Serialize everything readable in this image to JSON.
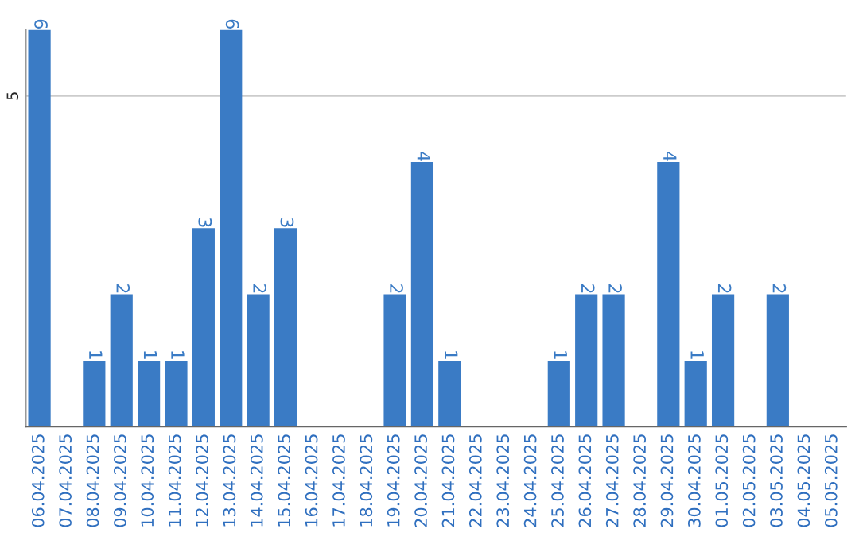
{
  "chart_data": {
    "type": "bar",
    "categories": [
      "06.04.2025",
      "07.04.2025",
      "08.04.2025",
      "09.04.2025",
      "10.04.2025",
      "11.04.2025",
      "12.04.2025",
      "13.04.2025",
      "14.04.2025",
      "15.04.2025",
      "16.04.2025",
      "17.04.2025",
      "18.04.2025",
      "19.04.2025",
      "20.04.2025",
      "21.04.2025",
      "22.04.2025",
      "23.04.2025",
      "24.04.2025",
      "25.04.2025",
      "26.04.2025",
      "27.04.2025",
      "28.04.2025",
      "29.04.2025",
      "30.04.2025",
      "01.05.2025",
      "02.05.2025",
      "03.05.2025",
      "04.05.2025",
      "05.05.2025"
    ],
    "values": [
      6,
      0,
      1,
      2,
      1,
      1,
      3,
      6,
      2,
      3,
      0,
      0,
      0,
      2,
      4,
      1,
      0,
      0,
      0,
      1,
      2,
      2,
      0,
      4,
      1,
      2,
      0,
      2,
      0,
      0
    ],
    "value_labels": [
      "6",
      null,
      "1",
      "2",
      "1",
      "1",
      "3",
      "6",
      "2",
      "3",
      null,
      null,
      null,
      "2",
      "4",
      "1",
      null,
      null,
      null,
      "1",
      "2",
      "2",
      null,
      "4",
      "1",
      "2",
      null,
      "2",
      null,
      null
    ],
    "color": "#3a7bc5",
    "ylim": [
      0,
      6
    ],
    "yticks": [
      5
    ],
    "grid": "y"
  }
}
